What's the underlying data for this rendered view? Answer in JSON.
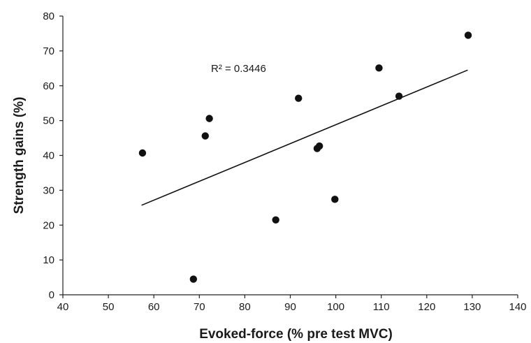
{
  "chart_data": {
    "type": "scatter",
    "title": "",
    "xlabel": "Evoked-force (% pre test MVC)",
    "ylabel": "Strength gains (%)",
    "xlim": [
      40,
      140
    ],
    "ylim": [
      0,
      80
    ],
    "x_ticks": [
      "40",
      "50",
      "60",
      "70",
      "80",
      "90",
      "100",
      "110",
      "120",
      "130",
      "140"
    ],
    "y_ticks": [
      "0",
      "10",
      "20",
      "30",
      "40",
      "50",
      "60",
      "70",
      "80"
    ],
    "grid": false,
    "legend": "none",
    "points": [
      {
        "x": 57.5,
        "y": 40.7
      },
      {
        "x": 68.7,
        "y": 4.5
      },
      {
        "x": 71.3,
        "y": 45.6
      },
      {
        "x": 72.2,
        "y": 50.6
      },
      {
        "x": 86.8,
        "y": 21.5
      },
      {
        "x": 91.8,
        "y": 56.4
      },
      {
        "x": 95.9,
        "y": 42.0
      },
      {
        "x": 96.4,
        "y": 42.7
      },
      {
        "x": 99.8,
        "y": 27.4
      },
      {
        "x": 109.5,
        "y": 65.1
      },
      {
        "x": 113.9,
        "y": 57.0
      },
      {
        "x": 129.1,
        "y": 74.5
      }
    ],
    "trendline": {
      "x": [
        57.3,
        129.0
      ],
      "y": [
        25.7,
        64.5
      ]
    },
    "annotation": "R² = 0.3446",
    "colors": {
      "points": "#111111",
      "line": "#111111",
      "axes": "#222222"
    }
  }
}
